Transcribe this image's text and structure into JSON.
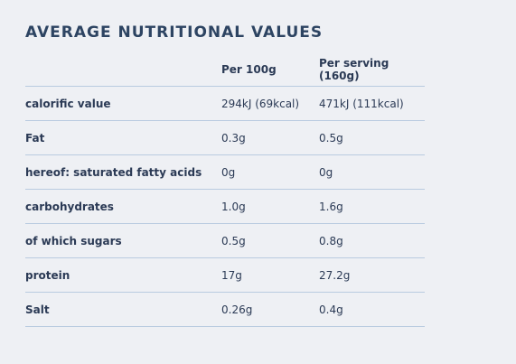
{
  "header": {
    "title": "AVERAGE NUTRITIONAL VALUES"
  },
  "table": {
    "columns": [
      "",
      "Per 100g",
      "Per serving (160g)"
    ],
    "rows": [
      [
        "calorific value",
        "294kJ (69kcal)",
        "471kJ (111kcal)"
      ],
      [
        "Fat",
        "0.3g",
        "0.5g"
      ],
      [
        "hereof: saturated fatty acids",
        "0g",
        "0g"
      ],
      [
        "carbohydrates",
        "1.0g",
        "1.6g"
      ],
      [
        "of which sugars",
        "0.5g",
        "0.8g"
      ],
      [
        "protein",
        "17g",
        "27.2g"
      ],
      [
        "Salt",
        "0.26g",
        "0.4g"
      ]
    ]
  }
}
